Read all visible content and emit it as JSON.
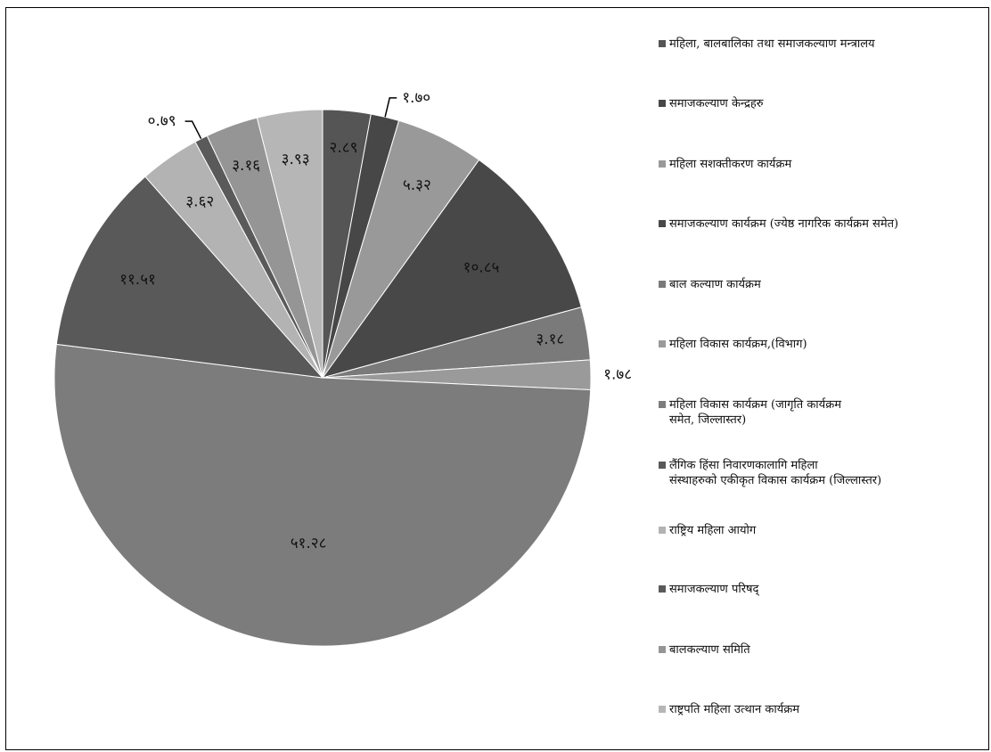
{
  "chart_data": {
    "type": "pie",
    "title": "",
    "values": [
      2.89,
      1.7,
      5.32,
      10.85,
      3.18,
      1.78,
      51.28,
      11.51,
      3.62,
      0.79,
      3.16,
      3.93
    ],
    "value_labels": [
      "२.८९",
      "१.७०",
      "५.३२",
      "१०.८५",
      "३.१८",
      "१.७८",
      "५१.२८",
      "११.५१",
      "३.६२",
      "०.७९",
      "३.१६",
      "३.९३"
    ],
    "labels": [
      "महिला, बालबालिका तथा समाजकल्याण मन्त्रालय",
      "समाजकल्याण केन्द्रहरु",
      "महिला सशक्तीकरण कार्यक्रम",
      "समाजकल्याण कार्यक्रम (ज्येष्ठ नागरिक कार्यक्रम समेत)",
      "बाल कल्याण कार्यक्रम",
      "महिला विकास कार्यक्रम,(विभाग)",
      "महिला विकास कार्यक्रम (जागृति कार्यक्रम\nसमेत, जिल्लास्तर)",
      "लैंगिक हिंसा निवारणकालागि महिला\nसंस्थाहरुको एकीकृत विकास कार्यक्रम (जिल्लास्तर)",
      "राष्ट्रिय महिला आयोग",
      "समाजकल्याण परिषद्",
      "बालकल्याण समिति",
      "राष्ट्रपति महिला उत्थान कार्यक्रम"
    ],
    "colors": [
      "#555555",
      "#474747",
      "#999999",
      "#484848",
      "#7a7a7a",
      "#9a9a9a",
      "#7c7c7c",
      "#595959",
      "#b3b3b3",
      "#5a5a5a",
      "#959595",
      "#b6b6b6"
    ],
    "start_angle_deg": 0,
    "direction": "clockwise",
    "legend": "right"
  }
}
